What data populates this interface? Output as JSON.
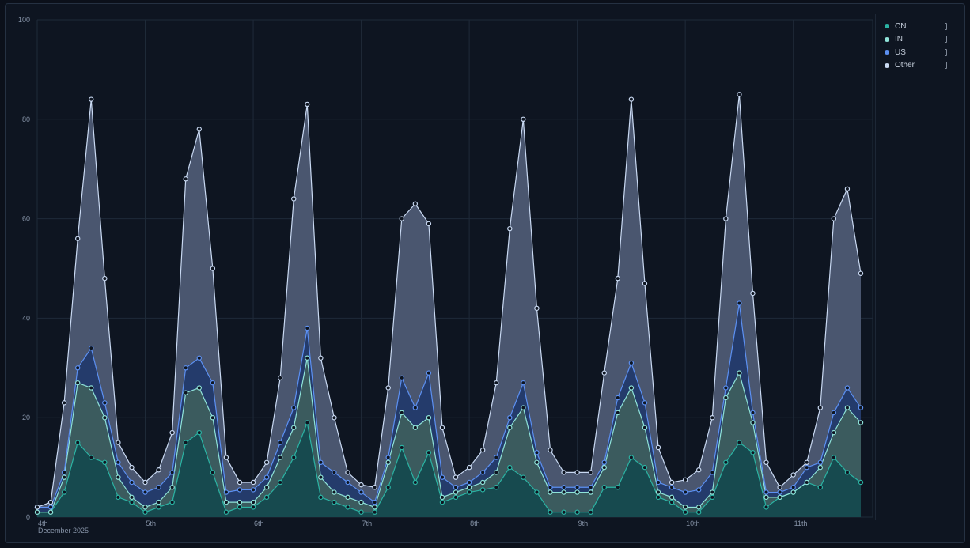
{
  "chart_data": {
    "type": "area",
    "stacked": true,
    "title": "",
    "xlabel": "",
    "ylabel": "",
    "ylim": [
      0,
      100
    ],
    "yticks": [
      "0",
      "20",
      "40",
      "60",
      "80",
      "100"
    ],
    "xticks": [
      "4th",
      "5th",
      "6th",
      "7th",
      "8th",
      "9th",
      "10th",
      "11th"
    ],
    "xtick_sublabel": "December 2025",
    "grid": true,
    "legend": "top-right",
    "x_start": "2025-12-04T00:00",
    "x_step_hours": 3,
    "series": [
      {
        "name": "CN",
        "line": "#2bb3a3",
        "fill": "#174a4f",
        "values": [
          1,
          1,
          5,
          15,
          12,
          11,
          4,
          3,
          1,
          2,
          3,
          15,
          17,
          9,
          1,
          2,
          2,
          4,
          7,
          12,
          19,
          4,
          3,
          2,
          1,
          1,
          6,
          14,
          7,
          13,
          3,
          4,
          5,
          5.5,
          6,
          10,
          8,
          5,
          1,
          1,
          1,
          1,
          6,
          6,
          12,
          10,
          4,
          3,
          1,
          1,
          4,
          11,
          15,
          13,
          2,
          4,
          5,
          7,
          6,
          12,
          9,
          7
        ]
      },
      {
        "name": "IN",
        "line": "#8fe3d9",
        "fill": "#3b5b5e",
        "values": [
          0,
          0,
          3,
          12,
          14,
          9,
          4,
          1,
          1,
          1,
          3,
          10,
          9,
          11,
          2,
          1,
          1,
          2,
          5,
          6,
          13,
          4,
          2,
          2,
          2,
          1,
          5,
          7,
          11,
          7,
          1,
          1,
          1,
          1.5,
          3,
          8,
          14,
          6,
          4,
          4,
          4,
          4,
          4,
          15,
          14,
          8,
          1,
          1,
          1,
          1,
          1,
          13,
          14,
          6,
          2,
          0,
          0,
          0,
          4,
          5,
          13,
          12
        ]
      },
      {
        "name": "US",
        "line": "#5c90f2",
        "fill": "#243b6b",
        "values": [
          1,
          1,
          1,
          3,
          8,
          3,
          3,
          3,
          3,
          3,
          3,
          5,
          6,
          7,
          2,
          2.5,
          2.5,
          2,
          3,
          4,
          6,
          3,
          4,
          3,
          2,
          1,
          1,
          7,
          4,
          9,
          4,
          1,
          1,
          2,
          3,
          2,
          5,
          2,
          1,
          1,
          1,
          1,
          1,
          3,
          5,
          5,
          2,
          2,
          3,
          3.5,
          4,
          2,
          14,
          2,
          1,
          1,
          1,
          3,
          1,
          4,
          4,
          3
        ]
      },
      {
        "name": "Other",
        "line": "#c9d9f2",
        "fill": "#4a566f",
        "values": [
          0,
          1,
          14,
          26,
          50,
          25,
          4,
          3,
          2,
          3.5,
          8,
          38,
          46,
          23,
          7,
          1.5,
          1.5,
          3,
          13,
          42,
          45,
          21,
          11,
          2,
          1.5,
          3,
          14,
          32,
          41,
          30,
          10,
          2,
          3,
          4.5,
          15,
          38,
          53,
          29,
          7.5,
          3,
          3,
          3,
          18,
          24,
          53,
          24,
          7,
          1,
          2.5,
          4,
          11,
          34,
          42,
          24,
          6,
          1,
          2.5,
          1,
          11,
          39,
          40,
          27
        ]
      }
    ]
  }
}
